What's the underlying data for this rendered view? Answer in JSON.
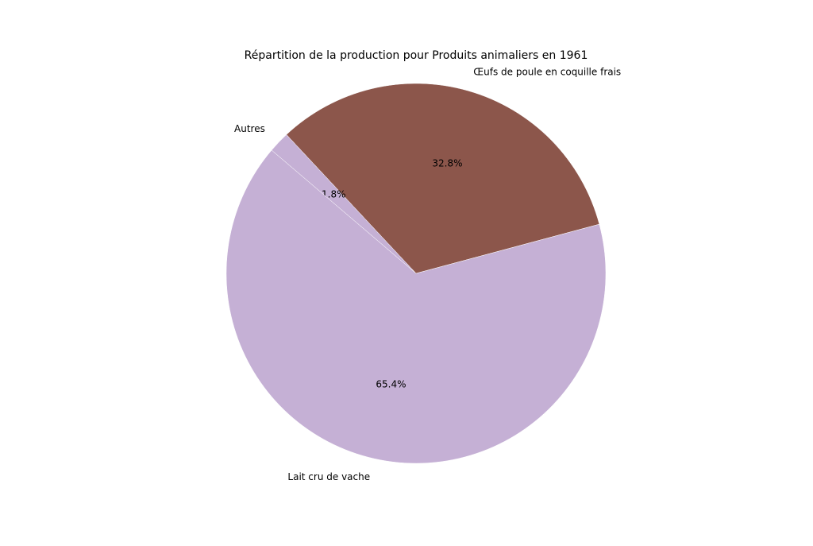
{
  "chart_data": {
    "type": "pie",
    "title": "Répartition de la production pour Produits animaliers en 1961",
    "categories": [
      "Œufs de poule en coquille frais",
      "Autres",
      "Lait cru de vache"
    ],
    "values": [
      32.8,
      1.8,
      65.4
    ],
    "value_labels": [
      "32.8%",
      "1.8%",
      "65.4%"
    ],
    "colors": [
      "#8c564b",
      "#c5b0d5",
      "#c5b0d5"
    ]
  }
}
